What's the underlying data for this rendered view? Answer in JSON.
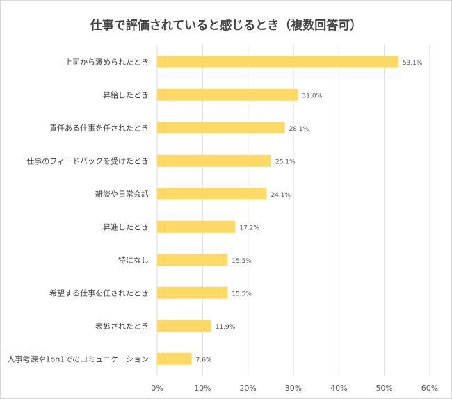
{
  "chart_data": {
    "type": "bar",
    "orientation": "horizontal",
    "title": "仕事で評価されていると感じるとき（複数回答可）",
    "categories": [
      "上司から褒められたとき",
      "昇給したとき",
      "責任ある仕事を任されたとき",
      "仕事のフィードバックを受けたとき",
      "雑談や日常会話",
      "昇進したとき",
      "特になし",
      "希望する仕事を任されたとき",
      "表彰されたとき",
      "人事考課や1on1でのコミュニケーション"
    ],
    "values": [
      53.1,
      31.0,
      28.1,
      25.1,
      24.1,
      17.2,
      15.5,
      15.5,
      11.9,
      7.6
    ],
    "value_labels": [
      "53.1%",
      "31.0%",
      "28.1%",
      "25.1%",
      "24.1%",
      "17.2%",
      "15.5%",
      "15.5%",
      "11.9%",
      "7.6%"
    ],
    "xlim": [
      0,
      60
    ],
    "xticks": [
      0,
      10,
      20,
      30,
      40,
      50,
      60
    ],
    "xtick_labels": [
      "0%",
      "10%",
      "20%",
      "30%",
      "40%",
      "50%",
      "60%"
    ],
    "grid": true,
    "bar_color": "#ffd966",
    "grid_color": "#d9d9d9"
  }
}
